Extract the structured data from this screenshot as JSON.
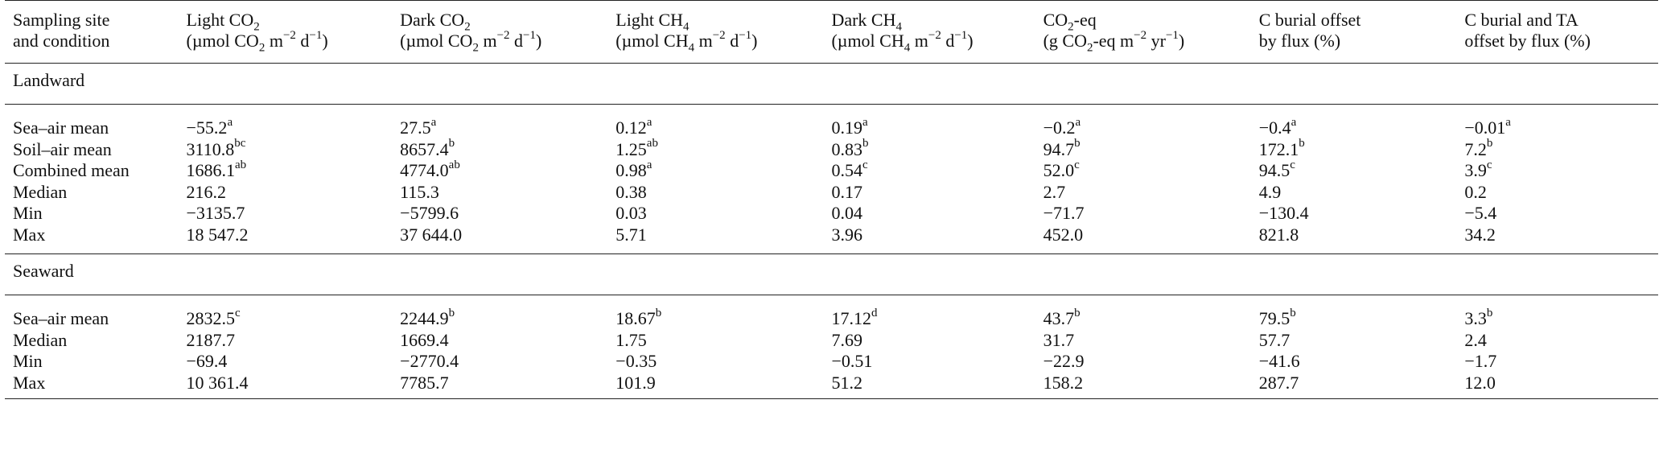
{
  "table": {
    "headers": [
      {
        "line1": "Sampling site",
        "line2": "and condition"
      },
      {
        "line1": "Light CO",
        "line1_sub": "2",
        "line2_pre": "(µmol CO",
        "line2_sub": "2",
        "line2_mid": " m",
        "line2_sup": "−2",
        "line2_post": " d",
        "line2_sup2": "−1",
        "line2_end": ")"
      },
      {
        "line1": "Dark CO",
        "line1_sub": "2",
        "line2_pre": "(µmol CO",
        "line2_sub": "2",
        "line2_mid": " m",
        "line2_sup": "−2",
        "line2_post": " d",
        "line2_sup2": "−1",
        "line2_end": ")"
      },
      {
        "line1": "Light CH",
        "line1_sub": "4",
        "line2_pre": "(µmol CH",
        "line2_sub": "4",
        "line2_mid": " m",
        "line2_sup": "−2",
        "line2_post": " d",
        "line2_sup2": "−1",
        "line2_end": ")"
      },
      {
        "line1": "Dark CH",
        "line1_sub": "4",
        "line2_pre": "(µmol CH",
        "line2_sub": "4",
        "line2_mid": " m",
        "line2_sup": "−2",
        "line2_post": " d",
        "line2_sup2": "−1",
        "line2_end": ")"
      },
      {
        "line1": "CO",
        "line1_sub": "2",
        "line1_post": "-eq",
        "line2_pre": "(g CO",
        "line2_sub": "2",
        "line2_mid": "-eq m",
        "line2_sup": "−2",
        "line2_post": " yr",
        "line2_sup2": "−1",
        "line2_end": ")"
      },
      {
        "line1": "C burial offset",
        "line2": "by flux (%)"
      },
      {
        "line1": "C burial and TA",
        "line2": "offset by flux (%)"
      }
    ],
    "sections": [
      {
        "title": "Landward",
        "rows": [
          {
            "label": "Sea–air mean",
            "cells": [
              {
                "v": "−55.2",
                "s": "a"
              },
              {
                "v": "27.5",
                "s": "a"
              },
              {
                "v": "0.12",
                "s": "a"
              },
              {
                "v": "0.19",
                "s": "a"
              },
              {
                "v": "−0.2",
                "s": "a"
              },
              {
                "v": "−0.4",
                "s": "a"
              },
              {
                "v": "−0.01",
                "s": "a"
              }
            ]
          },
          {
            "label": "Soil–air mean",
            "cells": [
              {
                "v": "3110.8",
                "s": "bc"
              },
              {
                "v": "8657.4",
                "s": "b"
              },
              {
                "v": "1.25",
                "s": "ab"
              },
              {
                "v": "0.83",
                "s": "b"
              },
              {
                "v": "94.7",
                "s": "b"
              },
              {
                "v": "172.1",
                "s": "b"
              },
              {
                "v": "7.2",
                "s": "b"
              }
            ]
          },
          {
            "label": "Combined mean",
            "cells": [
              {
                "v": "1686.1",
                "s": "ab"
              },
              {
                "v": "4774.0",
                "s": "ab"
              },
              {
                "v": "0.98",
                "s": "a"
              },
              {
                "v": "0.54",
                "s": "c"
              },
              {
                "v": "52.0",
                "s": "c"
              },
              {
                "v": "94.5",
                "s": "c"
              },
              {
                "v": "3.9",
                "s": "c"
              }
            ]
          },
          {
            "label": "Median",
            "cells": [
              {
                "v": "216.2"
              },
              {
                "v": "115.3"
              },
              {
                "v": "0.38"
              },
              {
                "v": "0.17"
              },
              {
                "v": "2.7"
              },
              {
                "v": "4.9"
              },
              {
                "v": "0.2"
              }
            ]
          },
          {
            "label": "Min",
            "cells": [
              {
                "v": "−3135.7"
              },
              {
                "v": "−5799.6"
              },
              {
                "v": "0.03"
              },
              {
                "v": "0.04"
              },
              {
                "v": "−71.7"
              },
              {
                "v": "−130.4"
              },
              {
                "v": "−5.4"
              }
            ]
          },
          {
            "label": "Max",
            "cells": [
              {
                "v": "18 547.2"
              },
              {
                "v": "37 644.0"
              },
              {
                "v": "5.71"
              },
              {
                "v": "3.96"
              },
              {
                "v": "452.0"
              },
              {
                "v": "821.8"
              },
              {
                "v": "34.2"
              }
            ]
          }
        ]
      },
      {
        "title": "Seaward",
        "rows": [
          {
            "label": "Sea–air mean",
            "cells": [
              {
                "v": "2832.5",
                "s": "c"
              },
              {
                "v": "2244.9",
                "s": "b"
              },
              {
                "v": "18.67",
                "s": "b"
              },
              {
                "v": "17.12",
                "s": "d"
              },
              {
                "v": "43.7",
                "s": "b"
              },
              {
                "v": "79.5",
                "s": "b"
              },
              {
                "v": "3.3",
                "s": "b"
              }
            ]
          },
          {
            "label": "Median",
            "cells": [
              {
                "v": "2187.7"
              },
              {
                "v": "1669.4"
              },
              {
                "v": "1.75"
              },
              {
                "v": "7.69"
              },
              {
                "v": "31.7"
              },
              {
                "v": "57.7"
              },
              {
                "v": "2.4"
              }
            ]
          },
          {
            "label": "Min",
            "cells": [
              {
                "v": "−69.4"
              },
              {
                "v": "−2770.4"
              },
              {
                "v": "−0.35"
              },
              {
                "v": "−0.51"
              },
              {
                "v": "−22.9"
              },
              {
                "v": "−41.6"
              },
              {
                "v": "−1.7"
              }
            ]
          },
          {
            "label": "Max",
            "cells": [
              {
                "v": "10 361.4"
              },
              {
                "v": "7785.7"
              },
              {
                "v": "101.9"
              },
              {
                "v": "51.2"
              },
              {
                "v": "158.2"
              },
              {
                "v": "287.7"
              },
              {
                "v": "12.0"
              }
            ]
          }
        ]
      }
    ]
  }
}
